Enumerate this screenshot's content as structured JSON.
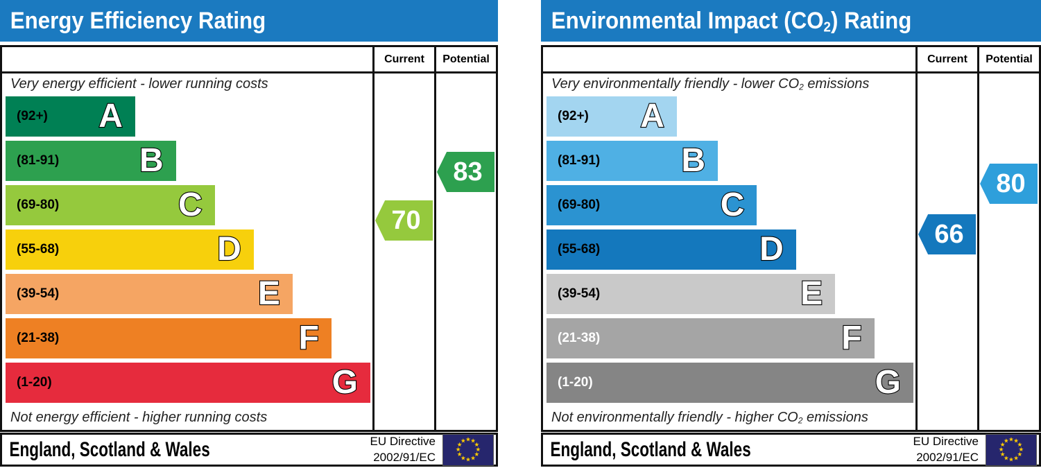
{
  "colors": {
    "header_blue": "#1b7ac0",
    "eu_flag_blue": "#26266d",
    "eu_star_yellow": "#ffcc00",
    "border_black": "#111111"
  },
  "chart_data": [
    {
      "type": "bar",
      "title": {
        "pre": "Energy Efficiency Rating",
        "sub": "",
        "post": ""
      },
      "columns": {
        "current": "Current",
        "potential": "Potential"
      },
      "caption_top": {
        "pre": "Very energy efficient - lower running costs",
        "sub": "",
        "post": ""
      },
      "caption_bottom": {
        "pre": "Not energy efficient - higher running costs",
        "sub": "",
        "post": ""
      },
      "value_range": [
        1,
        100
      ],
      "bands": [
        {
          "letter": "A",
          "range": "(92+)",
          "min": 92,
          "max": 100,
          "color": "#008054",
          "width_pct": 35,
          "label_color": "#000000"
        },
        {
          "letter": "B",
          "range": "(81-91)",
          "min": 81,
          "max": 91,
          "color": "#2da04f",
          "width_pct": 46,
          "label_color": "#000000"
        },
        {
          "letter": "C",
          "range": "(69-80)",
          "min": 69,
          "max": 80,
          "color": "#95c93d",
          "width_pct": 56.5,
          "label_color": "#000000"
        },
        {
          "letter": "D",
          "range": "(55-68)",
          "min": 55,
          "max": 68,
          "color": "#f7d00c",
          "width_pct": 67,
          "label_color": "#000000"
        },
        {
          "letter": "E",
          "range": "(39-54)",
          "min": 39,
          "max": 54,
          "color": "#f5a563",
          "width_pct": 77.5,
          "label_color": "#000000"
        },
        {
          "letter": "F",
          "range": "(21-38)",
          "min": 21,
          "max": 38,
          "color": "#ee8023",
          "width_pct": 88,
          "label_color": "#000000"
        },
        {
          "letter": "G",
          "range": "(1-20)",
          "min": 1,
          "max": 20,
          "color": "#e62b3d",
          "width_pct": 98.5,
          "label_color": "#000000"
        }
      ],
      "markers": {
        "current": {
          "value": 70,
          "band": "C",
          "color": "#95c93d"
        },
        "potential": {
          "value": 83,
          "band": "B",
          "color": "#2da04f"
        }
      },
      "footer": {
        "region": "England, Scotland & Wales",
        "directive_line1": "EU Directive",
        "directive_line2": "2002/91/EC"
      }
    },
    {
      "type": "bar",
      "title": {
        "pre": "Environmental Impact (CO",
        "sub": "2",
        "post": ") Rating"
      },
      "columns": {
        "current": "Current",
        "potential": "Potential"
      },
      "caption_top": {
        "pre": "Very environmentally friendly - lower CO",
        "sub": "2",
        "post": " emissions"
      },
      "caption_bottom": {
        "pre": "Not environmentally friendly - higher CO",
        "sub": "2",
        "post": " emissions"
      },
      "value_range": [
        1,
        100
      ],
      "bands": [
        {
          "letter": "A",
          "range": "(92+)",
          "min": 92,
          "max": 100,
          "color": "#a3d5f0",
          "width_pct": 35,
          "label_color": "#000000"
        },
        {
          "letter": "B",
          "range": "(81-91)",
          "min": 81,
          "max": 91,
          "color": "#4fb0e4",
          "width_pct": 46,
          "label_color": "#000000"
        },
        {
          "letter": "C",
          "range": "(69-80)",
          "min": 69,
          "max": 80,
          "color": "#2b93d1",
          "width_pct": 56.5,
          "label_color": "#000000"
        },
        {
          "letter": "D",
          "range": "(55-68)",
          "min": 55,
          "max": 68,
          "color": "#1478bd",
          "width_pct": 67,
          "label_color": "#000000"
        },
        {
          "letter": "E",
          "range": "(39-54)",
          "min": 39,
          "max": 54,
          "color": "#c9c9c9",
          "width_pct": 77.5,
          "label_color": "#000000"
        },
        {
          "letter": "F",
          "range": "(21-38)",
          "min": 21,
          "max": 38,
          "color": "#a5a5a5",
          "width_pct": 88,
          "label_color": "#ffffff"
        },
        {
          "letter": "G",
          "range": "(1-20)",
          "min": 1,
          "max": 20,
          "color": "#858585",
          "width_pct": 98.5,
          "label_color": "#ffffff"
        }
      ],
      "markers": {
        "current": {
          "value": 66,
          "band": "D",
          "color": "#1478bd"
        },
        "potential": {
          "value": 80,
          "band": "C",
          "color": "#2e9fdb"
        }
      },
      "footer": {
        "region": "England, Scotland & Wales",
        "directive_line1": "EU Directive",
        "directive_line2": "2002/91/EC"
      }
    }
  ]
}
